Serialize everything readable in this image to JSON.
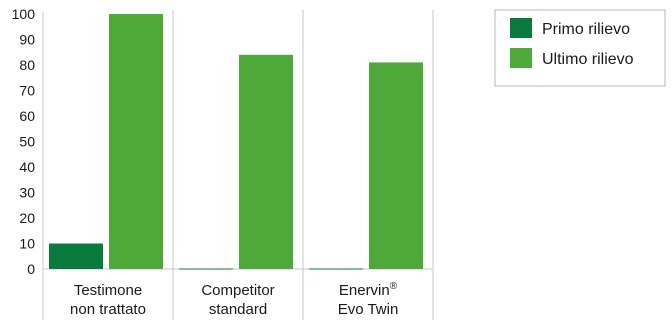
{
  "chart_data": {
    "type": "bar",
    "categories": [
      [
        "Testimone",
        "non trattato"
      ],
      [
        "Competitor",
        "standard"
      ],
      [
        "Enervin®",
        "Evo Twin"
      ]
    ],
    "series": [
      {
        "name": "Primo rilievo",
        "values": [
          10,
          0,
          0
        ],
        "color": "#0a7a3c"
      },
      {
        "name": "Ultimo rilievo",
        "values": [
          100,
          84,
          81
        ],
        "color": "#4ea83a"
      }
    ],
    "ylim": [
      0,
      100
    ],
    "yticks": [
      0,
      10,
      20,
      30,
      40,
      50,
      60,
      70,
      80,
      90,
      100
    ],
    "grid": false,
    "legend": "top-right"
  }
}
